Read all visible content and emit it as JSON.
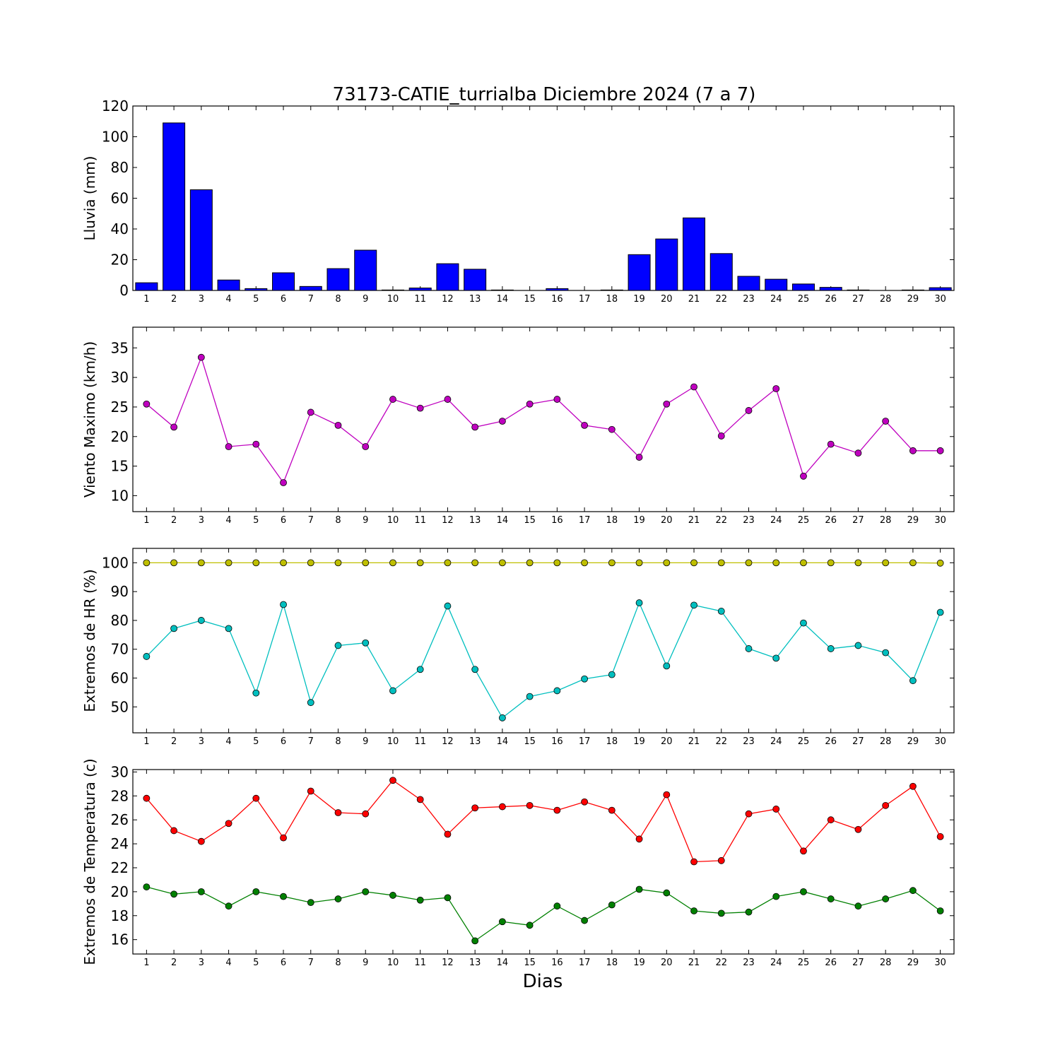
{
  "title": "73173-CATIE_turrialba Diciembre 2024  (7 a 7)",
  "xlabel": "Dias",
  "colors": {
    "rain": "#0000ff",
    "wind": "#bf00bf",
    "hr_max": "#bfbf00",
    "hr_min": "#00bfbf",
    "t_max": "#ff0000",
    "t_min": "#008000"
  },
  "chart_data": [
    {
      "type": "bar",
      "ylabel": "Lluvia (mm)",
      "ylim": [
        0,
        120
      ],
      "yticks": [
        0,
        20,
        40,
        60,
        80,
        100,
        120
      ],
      "categories": [
        "1",
        "2",
        "3",
        "4",
        "5",
        "6",
        "7",
        "8",
        "9",
        "10",
        "11",
        "12",
        "13",
        "14",
        "15",
        "16",
        "17",
        "18",
        "19",
        "20",
        "21",
        "22",
        "23",
        "24",
        "25",
        "26",
        "27",
        "28",
        "29",
        "30"
      ],
      "series": [
        {
          "values": [
            5,
            109,
            65.5,
            6.8,
            1.2,
            11.5,
            2.6,
            14.2,
            26.2,
            0.3,
            1.6,
            17.4,
            13.8,
            0.3,
            0,
            1.2,
            0,
            0.3,
            23.3,
            33.5,
            47.2,
            24,
            9.2,
            7.3,
            4.2,
            2,
            0.3,
            0,
            0.3,
            1.8
          ]
        }
      ]
    },
    {
      "type": "line",
      "ylabel": "Viento Maximo (km/h)",
      "ylim": [
        7.3,
        38.5
      ],
      "yticks": [
        10,
        15,
        20,
        25,
        30,
        35
      ],
      "categories": [
        "1",
        "2",
        "3",
        "4",
        "5",
        "6",
        "7",
        "8",
        "9",
        "10",
        "11",
        "12",
        "13",
        "14",
        "15",
        "16",
        "17",
        "18",
        "19",
        "20",
        "21",
        "22",
        "23",
        "24",
        "25",
        "26",
        "27",
        "28",
        "29",
        "30"
      ],
      "series": [
        {
          "values": [
            25.5,
            21.6,
            33.4,
            18.3,
            18.7,
            12.2,
            24.1,
            21.9,
            18.3,
            26.3,
            24.8,
            26.3,
            21.6,
            22.6,
            25.5,
            26.3,
            21.9,
            21.2,
            16.5,
            25.5,
            28.4,
            20.1,
            24.4,
            28.1,
            13.3,
            18.7,
            17.2,
            22.6,
            17.6,
            17.6
          ]
        }
      ]
    },
    {
      "type": "line",
      "ylabel": "Extremos de HR (%)",
      "ylim": [
        41,
        105
      ],
      "yticks": [
        50,
        60,
        70,
        80,
        90,
        100
      ],
      "categories": [
        "1",
        "2",
        "3",
        "4",
        "5",
        "6",
        "7",
        "8",
        "9",
        "10",
        "11",
        "12",
        "13",
        "14",
        "15",
        "16",
        "17",
        "18",
        "19",
        "20",
        "21",
        "22",
        "23",
        "24",
        "25",
        "26",
        "27",
        "28",
        "29",
        "30"
      ],
      "series": [
        {
          "values": [
            100,
            100,
            100,
            100,
            100,
            100,
            100,
            100,
            100,
            100,
            100,
            100,
            100,
            100,
            100,
            100,
            100,
            100,
            100,
            100,
            100,
            100,
            100,
            100,
            100,
            100,
            100,
            100,
            100,
            99.9
          ]
        },
        {
          "values": [
            67.5,
            77.2,
            80,
            77.2,
            54.8,
            85.5,
            51.5,
            71.3,
            72.2,
            55.6,
            63,
            85,
            63,
            46.2,
            53.6,
            55.6,
            59.7,
            61.2,
            86.1,
            64.2,
            85.3,
            83.2,
            70.2,
            66.9,
            79.1,
            70.2,
            71.3,
            68.8,
            59.1,
            82.8
          ]
        }
      ]
    },
    {
      "type": "line",
      "ylabel": "Extremos de Temperatura (c)",
      "ylim": [
        14.8,
        30.2
      ],
      "yticks": [
        16,
        18,
        20,
        22,
        24,
        26,
        28,
        30
      ],
      "categories": [
        "1",
        "2",
        "3",
        "4",
        "5",
        "6",
        "7",
        "8",
        "9",
        "10",
        "11",
        "12",
        "13",
        "14",
        "15",
        "16",
        "17",
        "18",
        "19",
        "20",
        "21",
        "22",
        "23",
        "24",
        "25",
        "26",
        "27",
        "28",
        "29",
        "30"
      ],
      "series": [
        {
          "values": [
            27.8,
            25.1,
            24.2,
            25.7,
            27.8,
            24.5,
            28.4,
            26.6,
            26.5,
            29.3,
            27.7,
            24.8,
            27,
            27.1,
            27.2,
            26.8,
            27.5,
            26.8,
            24.4,
            28.1,
            22.5,
            22.6,
            26.5,
            26.9,
            23.4,
            26,
            25.2,
            27.2,
            28.8,
            24.6
          ]
        },
        {
          "values": [
            20.4,
            19.8,
            20,
            18.8,
            20,
            19.6,
            19.1,
            19.4,
            20,
            19.7,
            19.3,
            19.5,
            15.9,
            17.5,
            17.2,
            18.8,
            17.6,
            18.9,
            20.2,
            19.9,
            18.4,
            18.2,
            18.3,
            19.6,
            20,
            19.4,
            18.8,
            19.4,
            20.1,
            18.4
          ]
        }
      ]
    }
  ]
}
